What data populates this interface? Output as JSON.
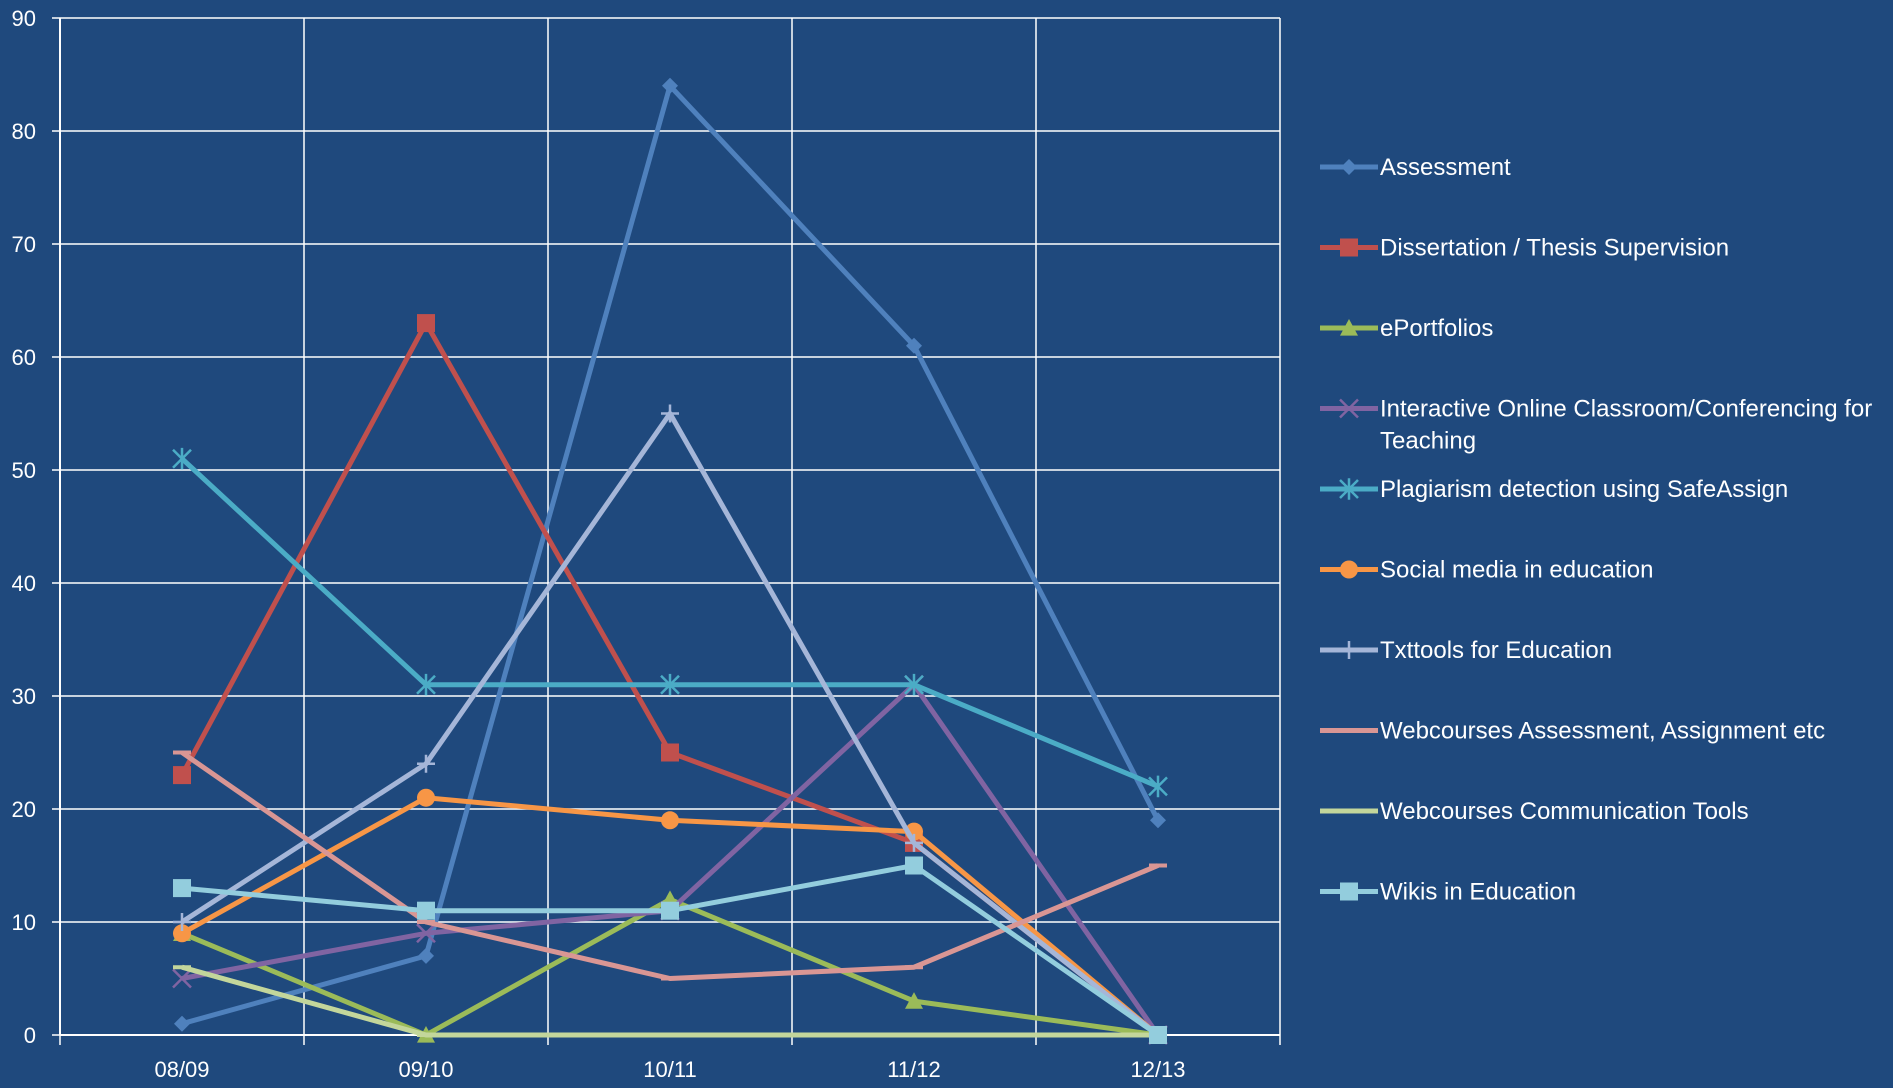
{
  "chart_data": {
    "type": "line",
    "title": "",
    "xlabel": "",
    "ylabel": "",
    "categories": [
      "08/09",
      "09/10",
      "10/11",
      "11/12",
      "12/13"
    ],
    "ylim": [
      0,
      90
    ],
    "yticks": [
      0,
      10,
      20,
      30,
      40,
      50,
      60,
      70,
      80,
      90
    ],
    "grid": true,
    "legend_position": "right",
    "background_color": "#1F497D",
    "grid_color": "#FFFFFF",
    "series": [
      {
        "name": "Assessment",
        "legend_lines": [
          "Assessment"
        ],
        "color": "#4F81BD",
        "marker": "diamond",
        "values": [
          1,
          7,
          84,
          61,
          19
        ]
      },
      {
        "name": "Dissertation / Thesis Supervision",
        "legend_lines": [
          "Dissertation / Thesis Supervision"
        ],
        "color": "#C0504D",
        "marker": "square",
        "values": [
          23,
          63,
          25,
          17,
          0
        ]
      },
      {
        "name": "ePortfolios",
        "legend_lines": [
          "ePortfolios"
        ],
        "color": "#9BBB59",
        "marker": "triangle",
        "values": [
          9,
          0,
          12,
          3,
          0
        ]
      },
      {
        "name": "Interactive Online Classroom/Conferencing for Teaching",
        "legend_lines": [
          "Interactive Online Classroom/Conferencing for",
          "Teaching"
        ],
        "color": "#8064A2",
        "marker": "x",
        "values": [
          5,
          9,
          11,
          31,
          0
        ]
      },
      {
        "name": "Plagiarism detection using SafeAssign",
        "legend_lines": [
          "Plagiarism detection using SafeAssign"
        ],
        "color": "#4BACC6",
        "marker": "star",
        "values": [
          51,
          31,
          31,
          31,
          22
        ]
      },
      {
        "name": "Social media in education",
        "legend_lines": [
          "Social media in education"
        ],
        "color": "#F79646",
        "marker": "circle",
        "values": [
          9,
          21,
          19,
          18,
          0
        ]
      },
      {
        "name": "Txttools for Education",
        "legend_lines": [
          "Txttools for Education"
        ],
        "color": "#A5B6D8",
        "marker": "plus",
        "values": [
          10,
          24,
          55,
          17,
          0
        ]
      },
      {
        "name": "Webcourses Assessment, Assignment etc",
        "legend_lines": [
          "Webcourses Assessment, Assignment etc"
        ],
        "color": "#D99694",
        "marker": "dash",
        "values": [
          25,
          10,
          5,
          6,
          15
        ]
      },
      {
        "name": "Webcourses Communication Tools",
        "legend_lines": [
          "Webcourses Communication Tools"
        ],
        "color": "#C3D69B",
        "marker": "dash",
        "values": [
          6,
          0,
          0,
          0,
          0
        ]
      },
      {
        "name": "Wikis in Education",
        "legend_lines": [
          "Wikis in Education"
        ],
        "color": "#93CDDD",
        "marker": "square",
        "values": [
          13,
          11,
          11,
          15,
          0
        ]
      }
    ]
  }
}
